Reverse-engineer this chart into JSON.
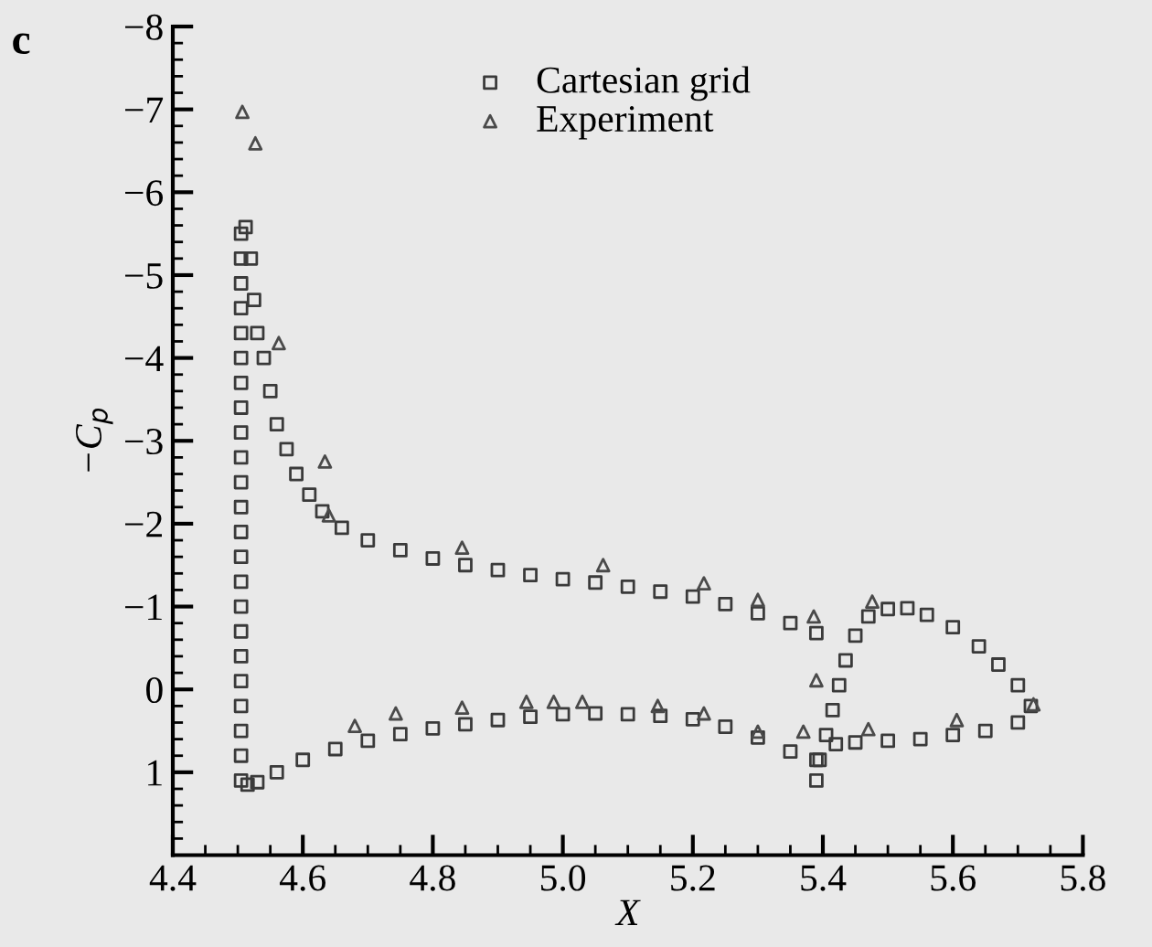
{
  "chart_data": {
    "type": "scatter",
    "xlabel": "X",
    "ylabel": "−C$_{p}$",
    "annotations": [
      "c"
    ],
    "xlim": [
      4.4,
      5.8
    ],
    "xticks": [
      4.4,
      4.6,
      4.8,
      {
        "value": 5,
        "label": "5.0"
      },
      5.2,
      5.4,
      5.6,
      5.8
    ],
    "ylim": [
      2,
      -8
    ],
    "yticks": [
      -8,
      -7,
      -6,
      -5,
      -4,
      -3,
      -2,
      -1,
      0,
      1
    ],
    "grid": false,
    "legend": "top right",
    "series": [
      {
        "name": "Cartesian grid",
        "color": "#3a3a3a",
        "marker": "square",
        "x": [
          4.505,
          4.505,
          4.505,
          4.505,
          4.505,
          4.505,
          4.505,
          4.505,
          4.505,
          4.505,
          4.505,
          4.505,
          4.505,
          4.505,
          4.505,
          4.505,
          4.505,
          4.505,
          4.505,
          4.505,
          4.505,
          4.505,
          4.505,
          4.512,
          4.52,
          4.525,
          4.53,
          4.54,
          4.55,
          4.56,
          4.575,
          4.59,
          4.61,
          4.63,
          4.66,
          4.7,
          4.75,
          4.8,
          4.85,
          4.9,
          4.95,
          5.0,
          5.05,
          5.1,
          5.15,
          5.2,
          5.25,
          5.3,
          5.35,
          5.39,
          4.515,
          4.53,
          4.56,
          4.6,
          4.65,
          4.7,
          4.75,
          4.8,
          4.85,
          4.9,
          4.95,
          5.0,
          5.05,
          5.1,
          5.15,
          5.2,
          5.25,
          5.3,
          5.35,
          5.39,
          5.39,
          5.395,
          5.405,
          5.415,
          5.425,
          5.435,
          5.45,
          5.47,
          5.5,
          5.53,
          5.56,
          5.6,
          5.64,
          5.67,
          5.7,
          5.72,
          5.7,
          5.65,
          5.6,
          5.55,
          5.5,
          5.45,
          5.42
        ],
        "values": [
          1.1,
          0.8,
          0.5,
          0.2,
          -0.1,
          -0.4,
          -0.7,
          -1.0,
          -1.3,
          -1.6,
          -1.9,
          -2.2,
          -2.5,
          -2.8,
          -3.1,
          -3.4,
          -3.7,
          -4.0,
          -4.3,
          -4.6,
          -4.9,
          -5.2,
          -5.5,
          -5.58,
          -5.2,
          -4.7,
          -4.3,
          -4.0,
          -3.6,
          -3.2,
          -2.9,
          -2.6,
          -2.35,
          -2.15,
          -1.95,
          -1.8,
          -1.68,
          -1.58,
          -1.5,
          -1.44,
          -1.38,
          -1.33,
          -1.29,
          -1.24,
          -1.18,
          -1.12,
          -1.03,
          -0.92,
          -0.8,
          -0.68,
          1.15,
          1.12,
          1.0,
          0.85,
          0.72,
          0.62,
          0.54,
          0.47,
          0.42,
          0.37,
          0.33,
          0.3,
          0.29,
          0.3,
          0.32,
          0.36,
          0.45,
          0.58,
          0.75,
          0.85,
          1.1,
          0.85,
          0.55,
          0.25,
          -0.05,
          -0.35,
          -0.65,
          -0.88,
          -0.97,
          -0.98,
          -0.9,
          -0.75,
          -0.52,
          -0.3,
          -0.05,
          0.2,
          0.4,
          0.5,
          0.55,
          0.6,
          0.62,
          0.64,
          0.66
        ]
      },
      {
        "name": "Experiment",
        "color": "#4a4a4a",
        "marker": "triangle",
        "x": [
          4.507,
          4.527,
          4.563,
          4.634,
          4.64,
          4.845,
          5.062,
          5.217,
          5.3,
          5.386,
          5.476,
          5.39,
          5.37,
          5.47,
          5.606,
          5.724,
          4.68,
          4.743,
          4.845,
          4.944,
          4.986,
          5.03,
          5.146,
          5.217,
          5.3
        ],
        "values": [
          -6.97,
          -6.59,
          -4.18,
          -2.75,
          -2.1,
          -1.71,
          -1.5,
          -1.28,
          -1.08,
          -0.88,
          -1.06,
          -0.11,
          0.51,
          0.48,
          0.37,
          0.18,
          0.44,
          0.29,
          0.22,
          0.15,
          0.15,
          0.15,
          0.2,
          0.29,
          0.51
        ]
      }
    ]
  }
}
